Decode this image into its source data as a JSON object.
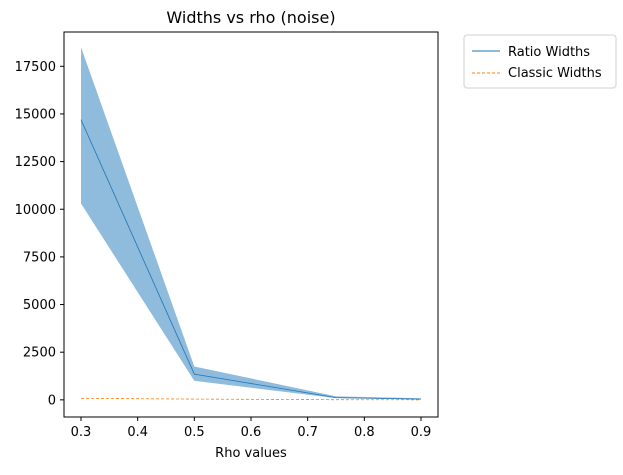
{
  "chart_data": {
    "type": "line",
    "title": "Widths vs rho (noise)",
    "xlabel": "Rho values",
    "ylabel": "",
    "xlim": [
      0.27,
      0.93
    ],
    "ylim": [
      -900,
      19300
    ],
    "x_ticks": [
      0.3,
      0.4,
      0.5,
      0.6,
      0.7,
      0.8,
      0.9
    ],
    "x_tick_labels": [
      "0.3",
      "0.4",
      "0.5",
      "0.6",
      "0.7",
      "0.8",
      "0.9"
    ],
    "y_ticks": [
      0,
      2500,
      5000,
      7500,
      10000,
      12500,
      15000,
      17500
    ],
    "y_tick_labels": [
      "0",
      "2500",
      "5000",
      "7500",
      "10000",
      "12500",
      "15000",
      "17500"
    ],
    "grid": false,
    "legend_position": "outside-top-right",
    "x": [
      0.3,
      0.5,
      0.75,
      0.9
    ],
    "series": [
      {
        "name": "Ratio Widths",
        "values": [
          14700,
          1350,
          120,
          40
        ],
        "band_lower": [
          10300,
          1000,
          90,
          20
        ],
        "band_upper": [
          18500,
          1750,
          180,
          80
        ],
        "color": "#1f77b4",
        "band_color": "#8fbbdc",
        "style": "solid"
      },
      {
        "name": "Classic Widths",
        "values": [
          80,
          40,
          10,
          5
        ],
        "color": "#ff7f0e",
        "style": "dashed"
      }
    ]
  }
}
